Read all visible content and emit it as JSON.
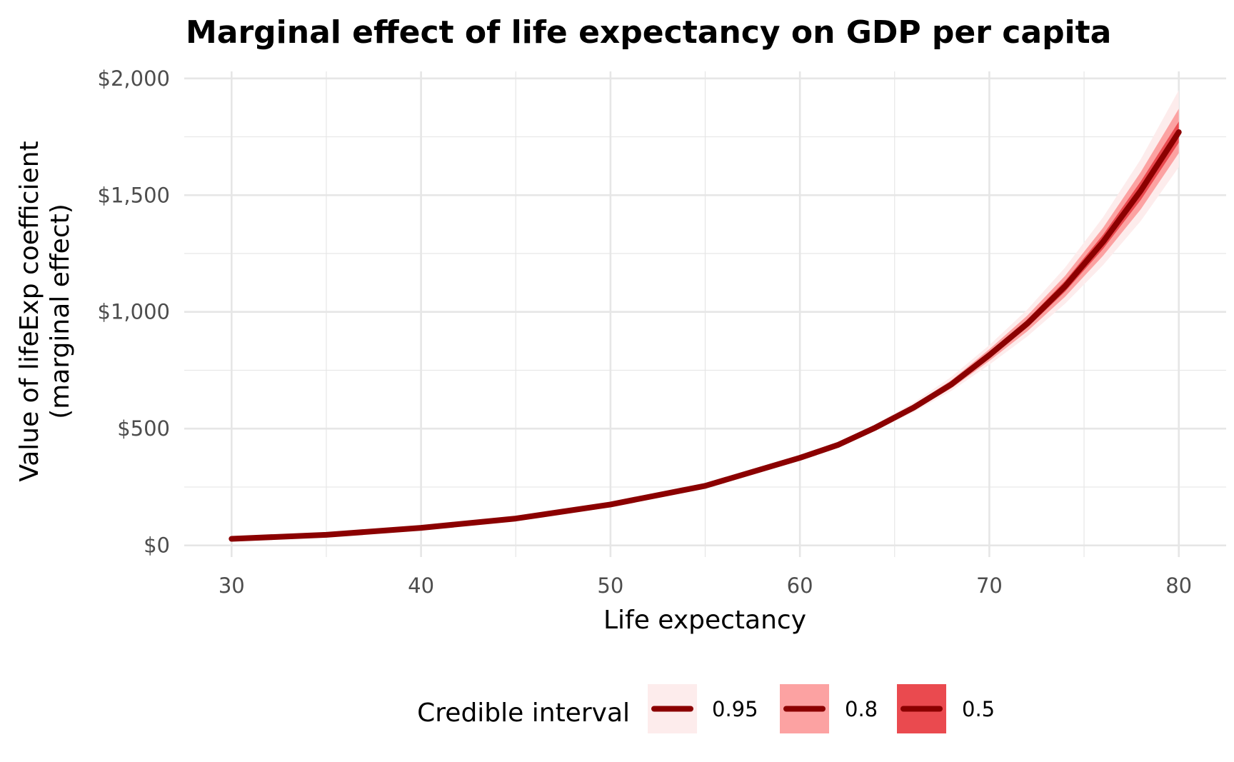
{
  "chart_data": {
    "type": "line",
    "title": "Marginal effect of life expectancy on GDP per capita",
    "xlabel": "Life expectancy",
    "ylabel_line1": "Value of lifeExp coefficient",
    "ylabel_line2": "(marginal effect)",
    "xlim": [
      27.5,
      82.5
    ],
    "ylim": [
      -50,
      2030
    ],
    "x_ticks": [
      30,
      40,
      50,
      60,
      70,
      80
    ],
    "x_tick_labels": [
      "30",
      "40",
      "50",
      "60",
      "70",
      "80"
    ],
    "y_ticks": [
      0,
      500,
      1000,
      1500,
      2000
    ],
    "y_tick_labels": [
      "$0",
      "$500",
      "$1,000",
      "$1,500",
      "$2,000"
    ],
    "grid": true,
    "x": [
      30,
      35,
      40,
      45,
      50,
      55,
      60,
      62,
      64,
      66,
      68,
      70,
      72,
      74,
      76,
      78,
      80
    ],
    "series": [
      {
        "values": [
          28,
          45,
          75,
          115,
          175,
          255,
          375,
          430,
          505,
          590,
          690,
          815,
          950,
          1110,
          1300,
          1520,
          1770
        ]
      }
    ],
    "bands": [
      {
        "level": "0.95",
        "lower": [
          27,
          44,
          74,
          114,
          174,
          253,
          370,
          423,
          492,
          570,
          662,
          774,
          895,
          1035,
          1200,
          1390,
          1620
        ],
        "upper": [
          29,
          46,
          76,
          116,
          176,
          257,
          380,
          438,
          520,
          612,
          722,
          858,
          1010,
          1190,
          1405,
          1655,
          1950
        ]
      },
      {
        "level": "0.8",
        "lower": [
          27.5,
          44.5,
          74.5,
          114.5,
          174.5,
          254,
          372,
          426,
          497,
          578,
          673,
          790,
          917,
          1065,
          1240,
          1440,
          1680
        ],
        "upper": [
          28.5,
          45.5,
          75.5,
          115.5,
          175.5,
          256,
          378,
          434,
          513,
          602,
          708,
          840,
          984,
          1155,
          1360,
          1600,
          1870
        ]
      },
      {
        "level": "0.5",
        "lower": [
          27.8,
          44.8,
          74.8,
          114.8,
          174.8,
          254.5,
          373.5,
          428,
          501,
          584,
          681,
          802,
          933,
          1087,
          1270,
          1480,
          1725
        ],
        "upper": [
          28.2,
          45.2,
          75.2,
          115.2,
          175.2,
          255.5,
          376.5,
          432,
          509,
          596,
          699,
          828,
          967,
          1133,
          1330,
          1560,
          1815
        ]
      }
    ],
    "legend": {
      "title": "Credible interval",
      "position": "bottom",
      "items": [
        {
          "label": "0.95",
          "color": "#fdecec"
        },
        {
          "label": "0.8",
          "color": "#fca2a2"
        },
        {
          "label": "0.5",
          "color": "#ea4a4f"
        }
      ]
    },
    "colors": {
      "line": "#8b0000",
      "grid": "#e6e6e6",
      "band_95": "#fdecec",
      "band_80": "#fca2a2",
      "band_50": "#ea4a4f"
    }
  }
}
